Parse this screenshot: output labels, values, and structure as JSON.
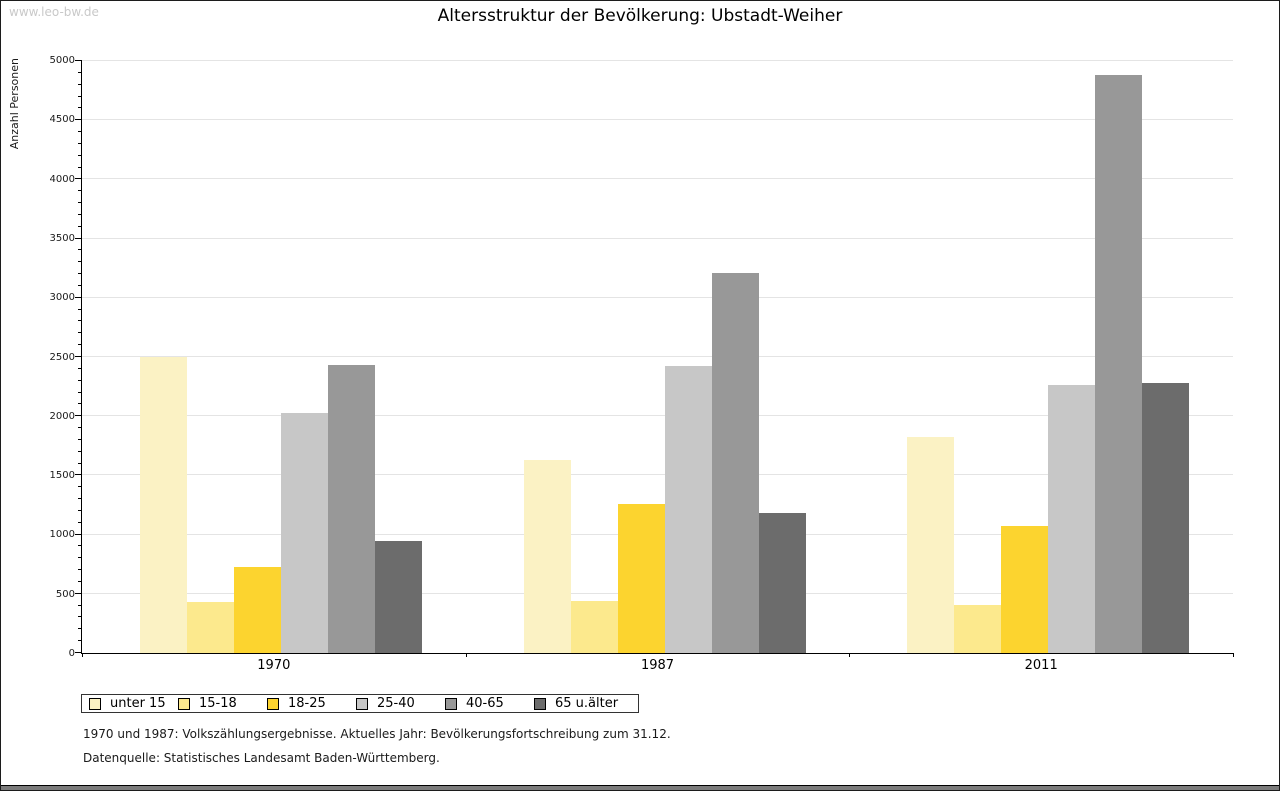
{
  "page": {
    "site_label": "www.leo-bw.de",
    "title": "Altersstruktur der Bevölkerung: Ubstadt-Weiher"
  },
  "footnotes": {
    "line1": "1970 und 1987: Volkszählungsergebnisse. Aktuelles Jahr: Bevölkerungsfortschreibung zum 31.12.",
    "line2": "Datenquelle: Statistisches Landesamt Baden-Württemberg."
  },
  "chart_data": {
    "type": "bar",
    "title": "Altersstruktur der Bevölkerung: Ubstadt-Weiher",
    "xlabel": "",
    "ylabel": "Anzahl Personen",
    "categories": [
      "1970",
      "1987",
      "2011"
    ],
    "series": [
      {
        "name": "unter 15",
        "color": "#FBF2C4",
        "values": [
          2500,
          1630,
          1825
        ]
      },
      {
        "name": "15-18",
        "color": "#FCE98D",
        "values": [
          430,
          440,
          405
        ]
      },
      {
        "name": "18-25",
        "color": "#FCD42F",
        "values": [
          730,
          1260,
          1075
        ]
      },
      {
        "name": "25-40",
        "color": "#C7C7C7",
        "values": [
          2030,
          2425,
          2265
        ]
      },
      {
        "name": "40-65",
        "color": "#989898",
        "values": [
          2430,
          3210,
          4885
        ]
      },
      {
        "name": "65 u.älter",
        "color": "#6C6C6C",
        "values": [
          950,
          1185,
          2280
        ]
      }
    ],
    "ylim": [
      0,
      5000
    ],
    "ytick_step": 500,
    "yminor_step": 100,
    "grid": true,
    "legend_position": "bottom"
  }
}
